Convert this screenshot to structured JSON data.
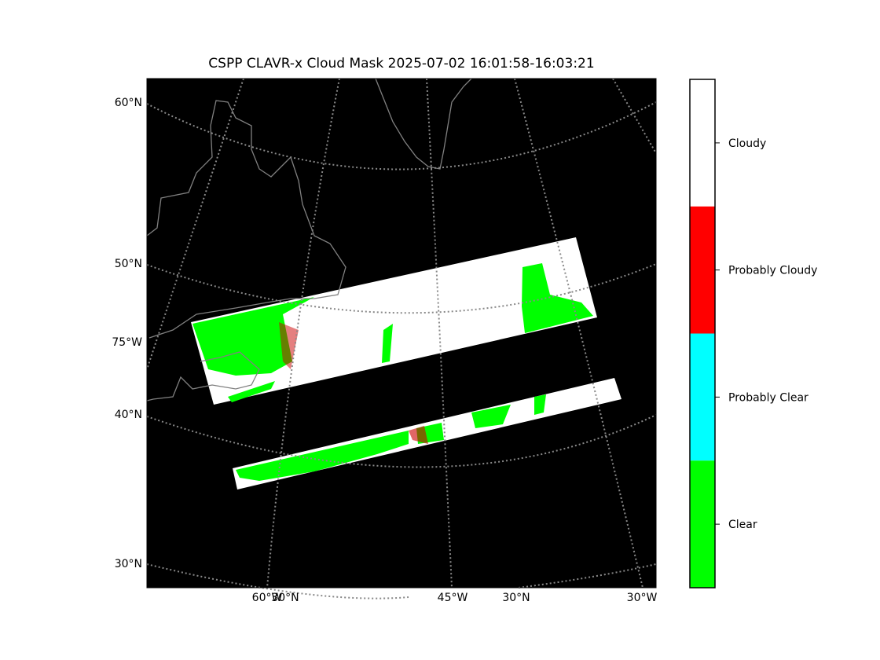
{
  "title": "CSPP CLAVR-x Cloud Mask 2025-07-02 16:01:58-16:03:21",
  "left_labels": [
    "60°N",
    "50°N",
    "75°W",
    "40°N",
    "30°N"
  ],
  "bottom_labels": [
    "60°W",
    "30°N",
    "45°W",
    "30°N",
    "30°W"
  ],
  "colorbar": [
    {
      "label": "Cloudy",
      "color": "#ffffff"
    },
    {
      "label": "Probably Cloudy",
      "color": "#ff0000"
    },
    {
      "label": "Probably Clear",
      "color": "#00ffff"
    },
    {
      "label": "Clear",
      "color": "#00ff00"
    }
  ]
}
